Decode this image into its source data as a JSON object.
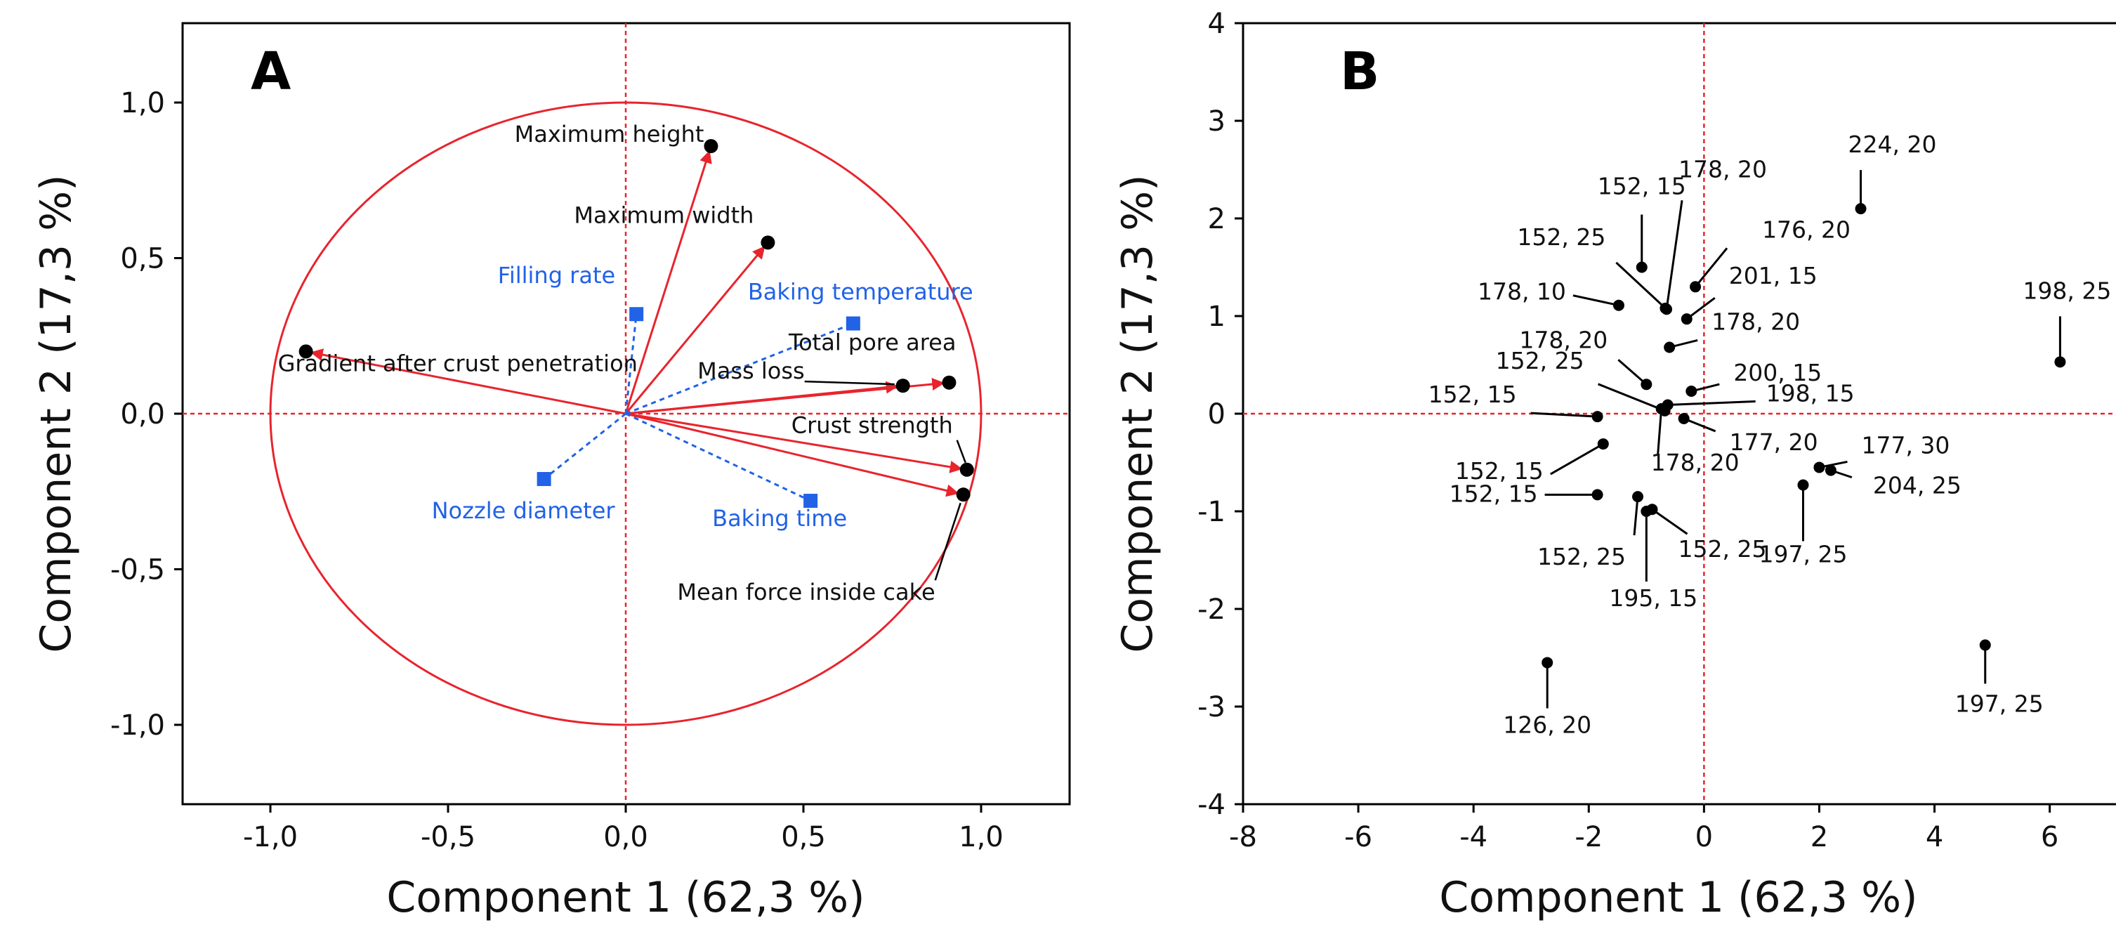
{
  "chart_data": [
    {
      "type": "scatter",
      "panel": "A",
      "xlabel": "Component 1  (62,3 %)",
      "ylabel": "Component 2  (17,3 %)",
      "xlim": [
        -1.25,
        1.25
      ],
      "ylim": [
        -1.25,
        1.25
      ],
      "xticks": [
        "-1,0",
        "-0,5",
        "0,0",
        "0,5",
        "1,0"
      ],
      "yticks": [
        "1,0",
        "0,5",
        "0,0",
        "-0,5",
        "-1,0"
      ],
      "reference_lines": "dashed red lines at x = 0 and y = 0",
      "correlation_circle": "unit circle (red)",
      "colors": {
        "active": "#e8242d",
        "supplementary": "#2162e6",
        "ref_line": "#e8242d"
      },
      "active_variables": [
        {
          "name": "Maximum height",
          "x": 0.24,
          "y": 0.86
        },
        {
          "name": "Maximum width",
          "x": 0.4,
          "y": 0.55
        },
        {
          "name": "Gradient after crust penetration",
          "x": -0.9,
          "y": 0.2
        },
        {
          "name": "Total pore area",
          "x": 0.91,
          "y": 0.1
        },
        {
          "name": "Mass loss",
          "x": 0.78,
          "y": 0.09
        },
        {
          "name": "Crust strength",
          "x": 0.96,
          "y": -0.18
        },
        {
          "name": "Mean force inside cake",
          "x": 0.95,
          "y": -0.26
        }
      ],
      "supplementary_variables": [
        {
          "name": "Filling rate",
          "x": 0.03,
          "y": 0.32
        },
        {
          "name": "Baking temperature",
          "x": 0.64,
          "y": 0.29
        },
        {
          "name": "Nozzle diameter",
          "x": -0.23,
          "y": -0.21
        },
        {
          "name": "Baking time",
          "x": 0.52,
          "y": -0.28
        }
      ]
    },
    {
      "type": "scatter",
      "panel": "B",
      "xlabel": "Component 1  (62,3 %)",
      "ylabel": "Component 2  (17,3 %)",
      "xlim": [
        -8,
        8
      ],
      "ylim": [
        -4,
        4
      ],
      "xticks": [
        "-8",
        "-6",
        "-4",
        "-2",
        "0",
        "2",
        "4",
        "6"
      ],
      "yticks": [
        "4",
        "3",
        "2",
        "1",
        "0",
        "-1",
        "-2",
        "-3",
        "-4"
      ],
      "reference_lines": "dashed red lines at x = 0 and y = 0",
      "points": [
        {
          "label": "224, 20",
          "x": 2.72,
          "y": 2.1
        },
        {
          "label": "198, 25",
          "x": 6.18,
          "y": 0.53
        },
        {
          "label": "152, 15",
          "x": -1.08,
          "y": 1.5
        },
        {
          "label": "178, 20",
          "x": -0.65,
          "y": 1.07
        },
        {
          "label": "176, 20",
          "x": -0.15,
          "y": 1.3
        },
        {
          "label": "152, 25",
          "x": -0.67,
          "y": 1.08
        },
        {
          "label": "201, 15",
          "x": -0.3,
          "y": 0.97
        },
        {
          "label": "178, 10",
          "x": -1.48,
          "y": 1.11
        },
        {
          "label": "178, 20",
          "x": -0.6,
          "y": 0.68
        },
        {
          "label": "178, 20",
          "x": -1.0,
          "y": 0.3
        },
        {
          "label": "200, 15",
          "x": -0.22,
          "y": 0.23
        },
        {
          "label": "152, 25",
          "x": -0.68,
          "y": 0.03
        },
        {
          "label": "198, 15",
          "x": -0.63,
          "y": 0.09
        },
        {
          "label": "152, 15",
          "x": -1.85,
          "y": -0.03
        },
        {
          "label": "177, 20",
          "x": -0.35,
          "y": -0.05
        },
        {
          "label": "178, 20",
          "x": -0.74,
          "y": 0.05
        },
        {
          "label": "152, 15",
          "x": -1.75,
          "y": -0.31
        },
        {
          "label": "177, 30",
          "x": 2.0,
          "y": -0.55
        },
        {
          "label": "204, 25",
          "x": 2.2,
          "y": -0.58
        },
        {
          "label": "152, 15",
          "x": -1.85,
          "y": -0.83
        },
        {
          "label": "197, 25",
          "x": 1.72,
          "y": -0.73
        },
        {
          "label": "152, 25",
          "x": -1.15,
          "y": -0.85
        },
        {
          "label": "195, 15",
          "x": -1.0,
          "y": -1.0
        },
        {
          "label": "152, 25",
          "x": -0.9,
          "y": -0.98
        },
        {
          "label": "126, 20",
          "x": -2.72,
          "y": -2.55
        },
        {
          "label": "197, 25",
          "x": 4.88,
          "y": -2.37
        }
      ]
    }
  ]
}
